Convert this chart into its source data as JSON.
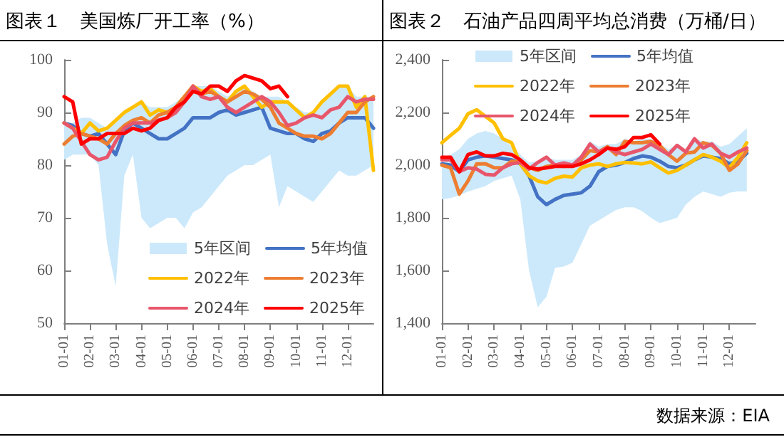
{
  "chart_data": [
    {
      "type": "line",
      "title": "图表１　美国炼厂开工率（%）",
      "categories": [
        "01-01",
        null,
        null,
        "02-01",
        null,
        null,
        "03-01",
        null,
        null,
        "04-01",
        null,
        null,
        "05-01",
        null,
        null,
        "06-01",
        null,
        null,
        "07-01",
        null,
        null,
        "08-01",
        null,
        null,
        "09-01",
        null,
        null,
        "10-01",
        null,
        null,
        "11-01",
        null,
        null,
        "12-01",
        null,
        null,
        null
      ],
      "ylim": [
        50,
        100
      ],
      "yticks": [
        50,
        60,
        70,
        80,
        90,
        100
      ],
      "legend": "bottom right",
      "marker": "none",
      "legend_title": "5年区间",
      "series": [
        {
          "name": "5年均值",
          "color": "#4472c4",
          "values": [
            88,
            87.5,
            86,
            85.5,
            86,
            84,
            82,
            86.5,
            88,
            87,
            86,
            85,
            85,
            86,
            87,
            89,
            89,
            89,
            90,
            90.5,
            89.5,
            90,
            90.5,
            91,
            87,
            86.5,
            86,
            86,
            85,
            84.5,
            86,
            86.5,
            88,
            89,
            89,
            89,
            87
          ],
          "lower": [
            81,
            82,
            82,
            82,
            80,
            65,
            57,
            78,
            82,
            70,
            68,
            69,
            70,
            70,
            68,
            71,
            72,
            74,
            76,
            78,
            79,
            80,
            80,
            81,
            82,
            72,
            76,
            75,
            74,
            73,
            75,
            77,
            79,
            78,
            78,
            79,
            80
          ],
          "upper": [
            88,
            88,
            89,
            89,
            88,
            87,
            88,
            90,
            91,
            92,
            91,
            91,
            91,
            92,
            93,
            95,
            95,
            95,
            94,
            93,
            94,
            95,
            94,
            93,
            93,
            93,
            92,
            91,
            90,
            90,
            92,
            94,
            95,
            95,
            93,
            93,
            93
          ]
        },
        {
          "name": "2022年",
          "color": "#ffc000",
          "values": [
            88,
            87,
            86,
            88,
            86.5,
            87,
            88.5,
            90,
            91,
            92,
            89.5,
            90.5,
            90,
            91,
            93,
            95,
            94,
            94.5,
            93,
            92,
            94,
            95,
            93,
            91,
            92,
            92,
            92,
            90.5,
            89,
            90,
            92,
            93.5,
            95,
            95,
            91,
            93,
            79
          ]
        },
        {
          "name": "2023年",
          "color": "#ed7d31",
          "values": [
            84,
            85.5,
            86,
            85.5,
            85,
            84,
            86,
            87.5,
            88.5,
            89,
            88,
            89.5,
            90,
            91,
            93,
            95,
            93.5,
            94,
            93,
            92,
            93,
            94,
            93.5,
            92.5,
            91,
            88,
            87,
            86,
            85.5,
            85.5,
            85,
            86,
            88,
            90,
            90,
            92,
            93
          ]
        },
        {
          "name": "2024年",
          "color": "#e8566b",
          "values": [
            88,
            87,
            84.5,
            82,
            81,
            81.5,
            84.5,
            87,
            88,
            88,
            88,
            88.5,
            89,
            90,
            92,
            95,
            93,
            92.5,
            93,
            91,
            90,
            91,
            92,
            93,
            92,
            90,
            87.5,
            88,
            89,
            89.5,
            89,
            90.5,
            91,
            93,
            92,
            92.5,
            92.5
          ]
        },
        {
          "name": "2025年",
          "color": "#ff0000",
          "values": [
            93,
            92,
            84,
            85,
            85,
            86,
            86,
            86,
            87,
            86.5,
            87,
            88.5,
            89,
            91,
            92,
            94,
            93.5,
            95,
            95,
            94,
            96,
            97,
            96.5,
            96,
            94.5,
            95,
            93,
            null,
            null,
            null,
            null,
            null,
            null,
            null,
            null,
            null,
            null
          ]
        }
      ]
    },
    {
      "type": "line",
      "title": "图表２　石油产品四周平均总消费（万桶/日）",
      "categories": [
        "01-01",
        null,
        null,
        "02-01",
        null,
        null,
        "03-01",
        null,
        null,
        "04-01",
        null,
        null,
        "05-01",
        null,
        null,
        "06-01",
        null,
        null,
        "07-01",
        null,
        null,
        "08-01",
        null,
        null,
        "09-01",
        null,
        null,
        "10-01",
        null,
        null,
        "11-01",
        null,
        null,
        "12-01",
        null,
        null,
        null
      ],
      "ylim": [
        1400,
        2400
      ],
      "yticks": [
        {
          "value": 1400,
          "label": "1,400"
        },
        {
          "value": 1600,
          "label": "1,600"
        },
        {
          "value": 1800,
          "label": "1,800"
        },
        {
          "value": 2000,
          "label": "2,000"
        },
        {
          "value": 2200,
          "label": "2,200"
        },
        {
          "value": 2400,
          "label": "2,400"
        }
      ],
      "legend": "top",
      "marker": "none",
      "legend_title": "5年区间",
      "annotations": [
        "数据来源：EIA"
      ],
      "series": [
        {
          "name": "5年均值",
          "color": "#4472c4",
          "values": [
            2005,
            2000,
            1975,
            2020,
            2030,
            2035,
            2030,
            2025,
            2020,
            2005,
            1960,
            1880,
            1850,
            1870,
            1885,
            1890,
            1895,
            1920,
            1975,
            1995,
            2000,
            2010,
            2025,
            2035,
            2030,
            2015,
            1995,
            1990,
            2000,
            2020,
            2035,
            2030,
            2025,
            2005,
            2015,
            2045,
            null
          ],
          "lower": [
            1870,
            1875,
            1885,
            1900,
            1910,
            1920,
            1940,
            1950,
            1960,
            1870,
            1600,
            1460,
            1500,
            1610,
            1615,
            1630,
            1700,
            1770,
            1790,
            1810,
            1830,
            1840,
            1840,
            1825,
            1800,
            1780,
            1790,
            1800,
            1850,
            1880,
            1900,
            1890,
            1880,
            1895,
            1900,
            1900,
            null
          ],
          "upper": [
            2030,
            2040,
            2060,
            2100,
            2120,
            2130,
            2120,
            2100,
            2070,
            2040,
            2010,
            2015,
            2030,
            2020,
            2020,
            2020,
            2040,
            2090,
            2070,
            2080,
            2080,
            2100,
            2090,
            2100,
            2100,
            2080,
            2060,
            2080,
            2060,
            2100,
            2090,
            2090,
            2070,
            2080,
            2110,
            2140,
            null
          ]
        },
        {
          "name": "2022年",
          "color": "#ffc000",
          "values": [
            2085,
            2113,
            2140,
            2195,
            2210,
            2185,
            2160,
            2100,
            2085,
            2005,
            1960,
            1940,
            1932,
            1950,
            1958,
            1955,
            1990,
            2000,
            2005,
            1995,
            2005,
            2010,
            2008,
            2005,
            2012,
            1990,
            1970,
            1980,
            2000,
            2020,
            2040,
            2030,
            2015,
            1990,
            2030,
            2085,
            null
          ]
        },
        {
          "name": "2023年",
          "color": "#ed7d31",
          "values": [
            2000,
            1990,
            1890,
            1940,
            2005,
            2005,
            1990,
            1990,
            2015,
            2010,
            1990,
            1980,
            1995,
            2000,
            1995,
            2000,
            2020,
            2055,
            2050,
            2070,
            2040,
            2090,
            2085,
            2085,
            2090,
            2075,
            2040,
            2015,
            2045,
            2050,
            2085,
            2075,
            2045,
            1980,
            2005,
            2055,
            null
          ]
        },
        {
          "name": "2024年",
          "color": "#e8566b",
          "values": [
            2020,
            2020,
            1975,
            1990,
            1985,
            1965,
            1962,
            1990,
            2005,
            2010,
            1985,
            2010,
            2030,
            2000,
            2008,
            2000,
            2030,
            2080,
            2050,
            2065,
            2050,
            2040,
            2050,
            2060,
            2080,
            2060,
            2040,
            2075,
            2050,
            2100,
            2065,
            2080,
            2045,
            2030,
            2050,
            2065,
            null
          ]
        },
        {
          "name": "2025年",
          "color": "#ff0000",
          "values": [
            2030,
            2030,
            1975,
            2040,
            2050,
            2035,
            2035,
            2045,
            2040,
            2020,
            1990,
            1985,
            1990,
            1995,
            1995,
            1995,
            2005,
            2020,
            2040,
            2065,
            2060,
            2070,
            2105,
            2105,
            2115,
            2080,
            null,
            null,
            null,
            null,
            null,
            null,
            null,
            null,
            null,
            null,
            null
          ]
        }
      ]
    }
  ]
}
